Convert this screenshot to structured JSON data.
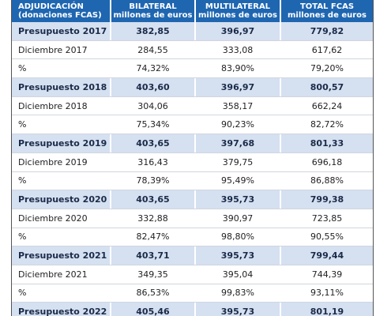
{
  "table": {
    "header": [
      [
        "ADJUDICACIÓN",
        "(donaciones FCAS)"
      ],
      [
        "BILATERAL",
        "millones de euros"
      ],
      [
        "MULTILATERAL",
        "millones de euros"
      ],
      [
        "TOTAL FCAS",
        "millones de euros"
      ]
    ],
    "rows": [
      [
        "Presupuesto 2017",
        "382,85",
        "396,97",
        "779,82"
      ],
      [
        "Diciembre 2017",
        "284,55",
        "333,08",
        "617,62"
      ],
      [
        "%",
        "74,32%",
        "83,90%",
        "79,20%"
      ],
      [
        "Presupuesto 2018",
        "403,60",
        "396,97",
        "800,57"
      ],
      [
        "Diciembre 2018",
        "304,06",
        "358,17",
        "662,24"
      ],
      [
        "%",
        "75,34%",
        "90,23%",
        "82,72%"
      ],
      [
        "Presupuesto 2019",
        "403,65",
        "397,68",
        "801,33"
      ],
      [
        "Diciembre 2019",
        "316,43",
        "379,75",
        "696,18"
      ],
      [
        "%",
        "78,39%",
        "95,49%",
        "86,88%"
      ],
      [
        "Presupuesto 2020",
        "403,65",
        "395,73",
        "799,38"
      ],
      [
        "Diciembre 2020",
        "332,88",
        "390,97",
        "723,85"
      ],
      [
        "%",
        "82,47%",
        "98,80%",
        "90,55%"
      ],
      [
        "Presupuesto 2021",
        "403,71",
        "395,73",
        "799,44"
      ],
      [
        "Diciembre 2021",
        "349,35",
        "395,04",
        "744,39"
      ],
      [
        "%",
        "86,53%",
        "99,83%",
        "93,11%"
      ],
      [
        "Presupuesto 2022",
        "405,46",
        "395,73",
        "801,19"
      ]
    ]
  }
}
